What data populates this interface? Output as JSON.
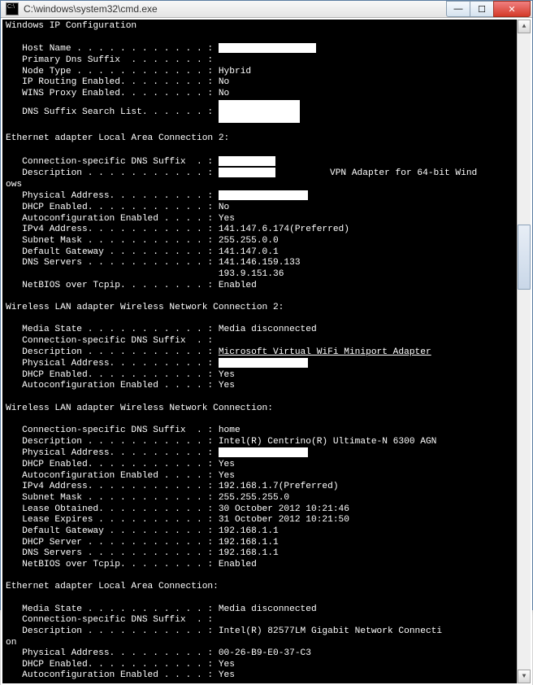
{
  "window": {
    "title": "C:\\windows\\system32\\cmd.exe"
  },
  "sections": {
    "ipconfigHeader": "Windows IP Configuration",
    "config": {
      "hostName": {
        "label": "Host Name . . . . . . . . . . . . :",
        "value": "",
        "redactW": 120,
        "redactH": 12
      },
      "primaryDns": {
        "label": "Primary Dns Suffix  . . . . . . . :",
        "value": ""
      },
      "nodeType": {
        "label": "Node Type . . . . . . . . . . . . :",
        "value": "Hybrid"
      },
      "ipRouting": {
        "label": "IP Routing Enabled. . . . . . . . :",
        "value": "No"
      },
      "winsProxy": {
        "label": "WINS Proxy Enabled. . . . . . . . :",
        "value": "No"
      },
      "dnsSuffixList": {
        "label": "DNS Suffix Search List. . . . . . :",
        "value": "",
        "redactW": 100,
        "redactH": 28
      }
    },
    "eth2Header": "Ethernet adapter Local Area Connection 2:",
    "eth2": {
      "connDns": {
        "label": "Connection-specific DNS Suffix  . :",
        "value": "",
        "redactW": 70,
        "redactH": 12
      },
      "desc": {
        "label": "Description . . . . . . . . . . . :",
        "value": "          VPN Adapter for 64-bit Wind",
        "redactW": 70,
        "redactH": 12
      },
      "descWrap": "ows",
      "physAddr": {
        "label": "Physical Address. . . . . . . . . :",
        "value": "",
        "redactW": 110,
        "redactH": 12
      },
      "dhcp": {
        "label": "DHCP Enabled. . . . . . . . . . . :",
        "value": "No"
      },
      "autoconf": {
        "label": "Autoconfiguration Enabled . . . . :",
        "value": "Yes"
      },
      "ipv4": {
        "label": "IPv4 Address. . . . . . . . . . . :",
        "value": "141.147.6.174(Preferred)"
      },
      "subnet": {
        "label": "Subnet Mask . . . . . . . . . . . :",
        "value": "255.255.0.0"
      },
      "gateway": {
        "label": "Default Gateway . . . . . . . . . :",
        "value": "141.147.0.1"
      },
      "dns1": {
        "label": "DNS Servers . . . . . . . . . . . :",
        "value": "141.146.159.133"
      },
      "dns2": {
        "label": "                                   ",
        "value": "193.9.151.36"
      },
      "netbios": {
        "label": "NetBIOS over Tcpip. . . . . . . . :",
        "value": "Enabled"
      }
    },
    "wlan2Header": "Wireless LAN adapter Wireless Network Connection 2:",
    "wlan2": {
      "mediaState": {
        "label": "Media State . . . . . . . . . . . :",
        "value": "Media disconnected"
      },
      "connDns": {
        "label": "Connection-specific DNS Suffix  . :",
        "value": ""
      },
      "desc": {
        "label": "Description . . . . . . . . . . . :",
        "value": "Microsoft Virtual WiFi Miniport Adapter",
        "underline": true
      },
      "physAddr": {
        "label": "Physical Address. . . . . . . . . :",
        "value": "",
        "redactW": 110,
        "redactH": 12
      },
      "dhcp": {
        "label": "DHCP Enabled. . . . . . . . . . . :",
        "value": "Yes"
      },
      "autoconf": {
        "label": "Autoconfiguration Enabled . . . . :",
        "value": "Yes"
      }
    },
    "wlanHeader": "Wireless LAN adapter Wireless Network Connection:",
    "wlan": {
      "connDns": {
        "label": "Connection-specific DNS Suffix  . :",
        "value": "home"
      },
      "desc": {
        "label": "Description . . . . . . . . . . . :",
        "value": "Intel(R) Centrino(R) Ultimate-N 6300 AGN"
      },
      "physAddr": {
        "label": "Physical Address. . . . . . . . . :",
        "value": "",
        "redactW": 110,
        "redactH": 12
      },
      "dhcp": {
        "label": "DHCP Enabled. . . . . . . . . . . :",
        "value": "Yes"
      },
      "autoconf": {
        "label": "Autoconfiguration Enabled . . . . :",
        "value": "Yes"
      },
      "ipv4": {
        "label": "IPv4 Address. . . . . . . . . . . :",
        "value": "192.168.1.7(Preferred)"
      },
      "subnet": {
        "label": "Subnet Mask . . . . . . . . . . . :",
        "value": "255.255.255.0"
      },
      "leaseObt": {
        "label": "Lease Obtained. . . . . . . . . . :",
        "value": "30 October 2012 10:21:46"
      },
      "leaseExp": {
        "label": "Lease Expires . . . . . . . . . . :",
        "value": "31 October 2012 10:21:50"
      },
      "gateway": {
        "label": "Default Gateway . . . . . . . . . :",
        "value": "192.168.1.1"
      },
      "dhcpSrv": {
        "label": "DHCP Server . . . . . . . . . . . :",
        "value": "192.168.1.1"
      },
      "dns": {
        "label": "DNS Servers . . . . . . . . . . . :",
        "value": "192.168.1.1"
      },
      "netbios": {
        "label": "NetBIOS over Tcpip. . . . . . . . :",
        "value": "Enabled"
      }
    },
    "ethHeader": "Ethernet adapter Local Area Connection:",
    "eth": {
      "mediaState": {
        "label": "Media State . . . . . . . . . . . :",
        "value": "Media disconnected"
      },
      "connDns": {
        "label": "Connection-specific DNS Suffix  . :",
        "value": ""
      },
      "desc": {
        "label": "Description . . . . . . . . . . . :",
        "value": "Intel(R) 82577LM Gigabit Network Connecti"
      },
      "descWrap": "on",
      "physAddr": {
        "label": "Physical Address. . . . . . . . . :",
        "value": "00-26-B9-E0-37-C3"
      },
      "dhcp": {
        "label": "DHCP Enabled. . . . . . . . . . . :",
        "value": "Yes"
      },
      "autoconf": {
        "label": "Autoconfiguration Enabled . . . . :",
        "value": "Yes"
      }
    }
  }
}
